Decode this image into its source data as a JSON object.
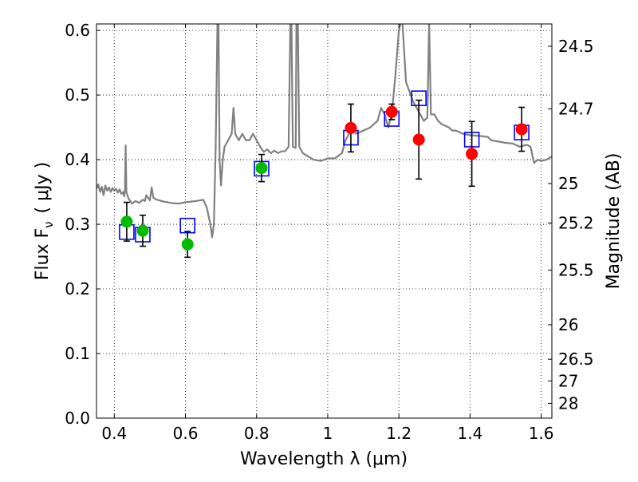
{
  "chart_data": {
    "type": "scatter",
    "xlabel": "Wavelength  λ (μm)",
    "ylabel": "Flux  F",
    "ylabel_sub": "ν",
    "ylabel_unit": "( μJy )",
    "y2label": "Magnitude (AB)",
    "xlim": [
      0.35,
      1.63
    ],
    "ylim": [
      0.0,
      0.61
    ],
    "grid": true,
    "x_ticks": [
      {
        "v": 0.4,
        "label": "0.4"
      },
      {
        "v": 0.6,
        "label": "0.6"
      },
      {
        "v": 0.8,
        "label": "0.8"
      },
      {
        "v": 1.0,
        "label": "1"
      },
      {
        "v": 1.2,
        "label": "1.2"
      },
      {
        "v": 1.4,
        "label": "1.4"
      },
      {
        "v": 1.6,
        "label": "1.6"
      }
    ],
    "y_ticks": [
      {
        "v": 0.0,
        "label": "0.0"
      },
      {
        "v": 0.1,
        "label": "0.1"
      },
      {
        "v": 0.2,
        "label": "0.2"
      },
      {
        "v": 0.3,
        "label": "0.3"
      },
      {
        "v": 0.4,
        "label": "0.4"
      },
      {
        "v": 0.5,
        "label": "0.5"
      },
      {
        "v": 0.6,
        "label": "0.6"
      }
    ],
    "y2_ticks": [
      {
        "mag": 24.5,
        "label": "24.5"
      },
      {
        "mag": 24.7,
        "label": "24.7"
      },
      {
        "mag": 25.0,
        "label": "25"
      },
      {
        "mag": 25.2,
        "label": "25.2"
      },
      {
        "mag": 25.5,
        "label": "25.5"
      },
      {
        "mag": 26.0,
        "label": "26"
      },
      {
        "mag": 26.5,
        "label": "26.5"
      },
      {
        "mag": 27.0,
        "label": "27"
      },
      {
        "mag": 28.0,
        "label": "28"
      }
    ],
    "series": [
      {
        "name": "model_spectrum",
        "kind": "line",
        "color": "#808080",
        "points": [
          [
            0.35,
            0.355
          ],
          [
            0.355,
            0.362
          ],
          [
            0.36,
            0.35
          ],
          [
            0.365,
            0.358
          ],
          [
            0.37,
            0.345
          ],
          [
            0.375,
            0.36
          ],
          [
            0.38,
            0.352
          ],
          [
            0.385,
            0.357
          ],
          [
            0.39,
            0.35
          ],
          [
            0.395,
            0.356
          ],
          [
            0.4,
            0.352
          ],
          [
            0.405,
            0.355
          ],
          [
            0.41,
            0.349
          ],
          [
            0.415,
            0.354
          ],
          [
            0.42,
            0.347
          ],
          [
            0.425,
            0.35
          ],
          [
            0.428,
            0.343
          ],
          [
            0.43,
            0.352
          ],
          [
            0.432,
            0.422
          ],
          [
            0.434,
            0.35
          ],
          [
            0.44,
            0.34
          ],
          [
            0.45,
            0.332
          ],
          [
            0.46,
            0.336
          ],
          [
            0.47,
            0.333
          ],
          [
            0.48,
            0.338
          ],
          [
            0.486,
            0.336
          ],
          [
            0.49,
            0.345
          ],
          [
            0.5,
            0.337
          ],
          [
            0.505,
            0.357
          ],
          [
            0.51,
            0.341
          ],
          [
            0.52,
            0.338
          ],
          [
            0.54,
            0.335
          ],
          [
            0.56,
            0.333
          ],
          [
            0.58,
            0.332
          ],
          [
            0.6,
            0.334
          ],
          [
            0.63,
            0.336
          ],
          [
            0.65,
            0.338
          ],
          [
            0.66,
            0.326
          ],
          [
            0.67,
            0.3
          ],
          [
            0.675,
            0.28
          ],
          [
            0.68,
            0.3
          ],
          [
            0.685,
            0.42
          ],
          [
            0.69,
            0.612
          ],
          [
            0.693,
            0.612
          ],
          [
            0.696,
            0.4
          ],
          [
            0.7,
            0.36
          ],
          [
            0.705,
            0.4
          ],
          [
            0.71,
            0.42
          ],
          [
            0.72,
            0.43
          ],
          [
            0.73,
            0.44
          ],
          [
            0.735,
            0.48
          ],
          [
            0.74,
            0.44
          ],
          [
            0.75,
            0.43
          ],
          [
            0.76,
            0.44
          ],
          [
            0.77,
            0.43
          ],
          [
            0.78,
            0.43
          ],
          [
            0.79,
            0.44
          ],
          [
            0.8,
            0.43
          ],
          [
            0.81,
            0.42
          ],
          [
            0.82,
            0.412
          ],
          [
            0.83,
            0.416
          ],
          [
            0.84,
            0.41
          ],
          [
            0.85,
            0.414
          ],
          [
            0.86,
            0.41
          ],
          [
            0.87,
            0.413
          ],
          [
            0.88,
            0.413
          ],
          [
            0.89,
            0.42
          ],
          [
            0.895,
            0.612
          ],
          [
            0.898,
            0.612
          ],
          [
            0.902,
            0.42
          ],
          [
            0.91,
            0.418
          ],
          [
            0.912,
            0.612
          ],
          [
            0.916,
            0.612
          ],
          [
            0.92,
            0.42
          ],
          [
            0.93,
            0.41
          ],
          [
            0.96,
            0.4
          ],
          [
            0.98,
            0.398
          ],
          [
            1.0,
            0.402
          ],
          [
            1.02,
            0.402
          ],
          [
            1.04,
            0.41
          ],
          [
            1.05,
            0.43
          ],
          [
            1.06,
            0.44
          ],
          [
            1.07,
            0.455
          ],
          [
            1.08,
            0.44
          ],
          [
            1.1,
            0.445
          ],
          [
            1.12,
            0.45
          ],
          [
            1.14,
            0.46
          ],
          [
            1.15,
            0.48
          ],
          [
            1.16,
            0.47
          ],
          [
            1.17,
            0.45
          ],
          [
            1.18,
            0.47
          ],
          [
            1.19,
            0.53
          ],
          [
            1.2,
            0.6
          ],
          [
            1.205,
            0.612
          ],
          [
            1.21,
            0.612
          ],
          [
            1.22,
            0.52
          ],
          [
            1.24,
            0.49
          ],
          [
            1.25,
            0.48
          ],
          [
            1.26,
            0.47
          ],
          [
            1.27,
            0.46
          ],
          [
            1.28,
            0.465
          ],
          [
            1.285,
            0.612
          ],
          [
            1.29,
            0.47
          ],
          [
            1.3,
            0.47
          ],
          [
            1.31,
            0.46
          ],
          [
            1.32,
            0.455
          ],
          [
            1.34,
            0.45
          ],
          [
            1.35,
            0.445
          ],
          [
            1.36,
            0.445
          ],
          [
            1.38,
            0.44
          ],
          [
            1.4,
            0.438
          ],
          [
            1.42,
            0.437
          ],
          [
            1.44,
            0.436
          ],
          [
            1.45,
            0.435
          ],
          [
            1.46,
            0.43
          ],
          [
            1.48,
            0.428
          ],
          [
            1.5,
            0.426
          ],
          [
            1.52,
            0.425
          ],
          [
            1.54,
            0.42
          ],
          [
            1.56,
            0.423
          ],
          [
            1.57,
            0.42
          ],
          [
            1.58,
            0.395
          ],
          [
            1.59,
            0.4
          ],
          [
            1.6,
            0.398
          ],
          [
            1.615,
            0.4
          ],
          [
            1.63,
            0.405
          ]
        ]
      },
      {
        "name": "model_photometry",
        "kind": "open_square",
        "color": "#0000ff",
        "points": [
          [
            0.435,
            0.288
          ],
          [
            0.48,
            0.284
          ],
          [
            0.606,
            0.298
          ],
          [
            0.814,
            0.386
          ],
          [
            1.065,
            0.434
          ],
          [
            1.18,
            0.463
          ],
          [
            1.256,
            0.495
          ],
          [
            1.405,
            0.431
          ],
          [
            1.545,
            0.442
          ]
        ]
      },
      {
        "name": "observed_optical",
        "kind": "filled_circle",
        "color": "#00bb00",
        "points": [
          {
            "x": 0.435,
            "y": 0.304,
            "err": 0.03
          },
          {
            "x": 0.48,
            "y": 0.29,
            "err": 0.024
          },
          {
            "x": 0.606,
            "y": 0.269,
            "err": 0.02
          },
          {
            "x": 0.814,
            "y": 0.387,
            "err": 0.021
          }
        ]
      },
      {
        "name": "observed_infrared",
        "kind": "filled_circle",
        "color": "#ff0000",
        "points": [
          {
            "x": 1.065,
            "y": 0.449,
            "err": 0.037
          },
          {
            "x": 1.18,
            "y": 0.474,
            "err": 0.012
          },
          {
            "x": 1.256,
            "y": 0.431,
            "err": 0.061
          },
          {
            "x": 1.405,
            "y": 0.409,
            "err": 0.05
          },
          {
            "x": 1.545,
            "y": 0.447,
            "err": 0.034
          }
        ]
      }
    ]
  }
}
